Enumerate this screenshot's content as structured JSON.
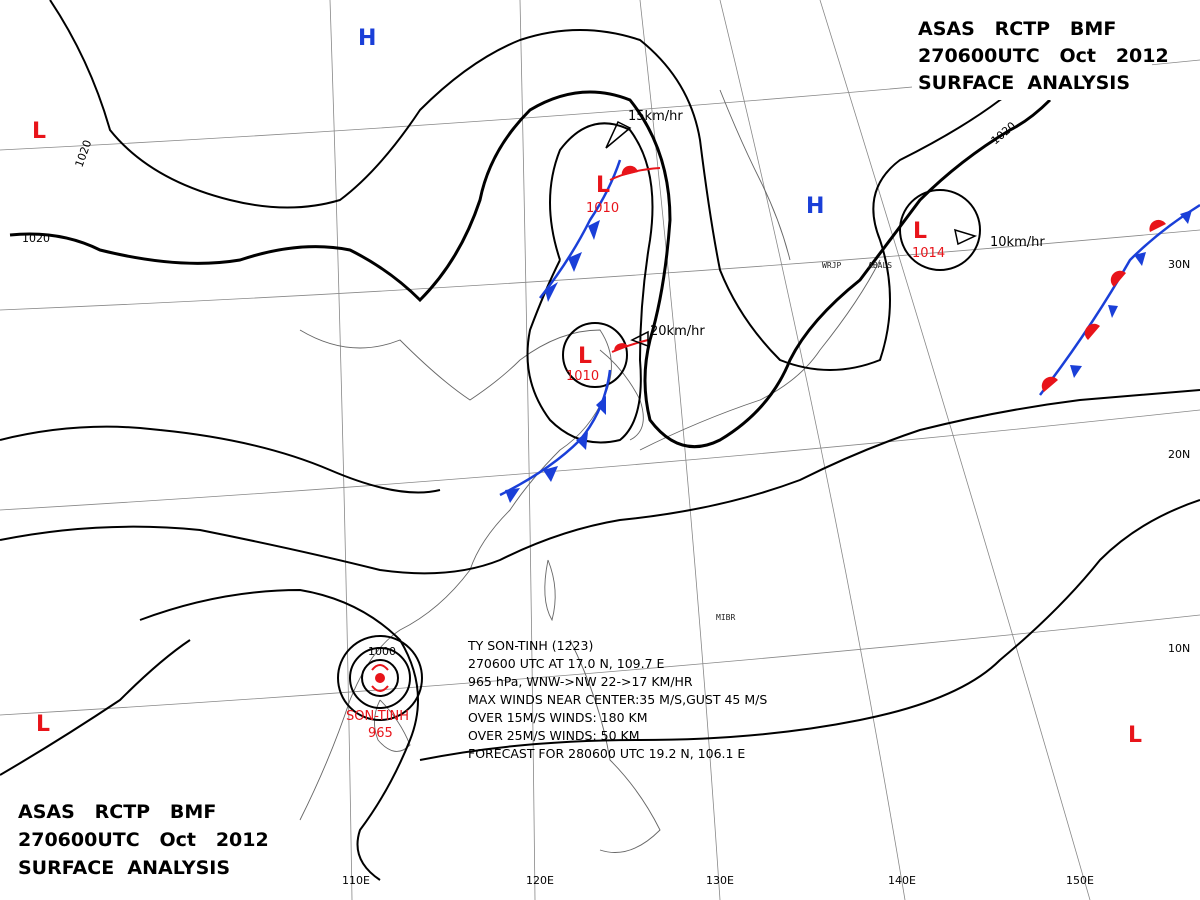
{
  "titles": {
    "top_right": [
      "ASAS   RCTP   BMF",
      "270600UTC   Oct   2012",
      "SURFACE  ANALYSIS"
    ],
    "bottom_left": [
      "ASAS   RCTP   BMF",
      "270600UTC   Oct   2012",
      "SURFACE  ANALYSIS"
    ]
  },
  "systems": [
    {
      "id": "low-far-west",
      "type": "L"
    },
    {
      "id": "high-north",
      "type": "H"
    },
    {
      "id": "low-north",
      "type": "L",
      "pressure": "1010",
      "motion": "15km/hr"
    },
    {
      "id": "low-korea",
      "type": "L",
      "pressure": "1010",
      "motion": "20km/hr"
    },
    {
      "id": "high-japan",
      "type": "H"
    },
    {
      "id": "low-pacific",
      "type": "L",
      "pressure": "1014",
      "motion": "10km/hr"
    },
    {
      "id": "low-se",
      "type": "L"
    },
    {
      "id": "low-sw",
      "type": "L"
    }
  ],
  "isobar_labels": [
    "1020",
    "1020",
    "1020",
    "1000"
  ],
  "typhoon": {
    "name_label": "SON-TINH",
    "pressure": "965",
    "notice": [
      "TY  SON-TINH  (1223)",
      "270600 UTC  AT 17.0 N, 109.7 E",
      "965 hPa, WNW->NW  22->17 KM/HR",
      "MAX WINDS NEAR CENTER:35 M/S,GUST 45 M/S",
      "OVER 15M/S WINDS: 180 KM",
      "OVER 25M/S WINDS: 50 KM",
      "FORECAST FOR 280600 UTC 19.2 N, 106.1 E"
    ]
  },
  "grid": {
    "longitudes": [
      "110E",
      "120E",
      "130E",
      "140E",
      "150E"
    ],
    "latitudes": [
      "30N",
      "20N",
      "10N"
    ]
  },
  "stations": [
    "WRJP",
    "ABALS",
    "MIBR"
  ],
  "colors": {
    "low": "#e8141a",
    "high": "#1a3fd8",
    "cold_front": "#1a3fd8",
    "warm_front": "#e8141a",
    "isobar": "#000000",
    "coast": "#666666",
    "grid": "#888888"
  }
}
